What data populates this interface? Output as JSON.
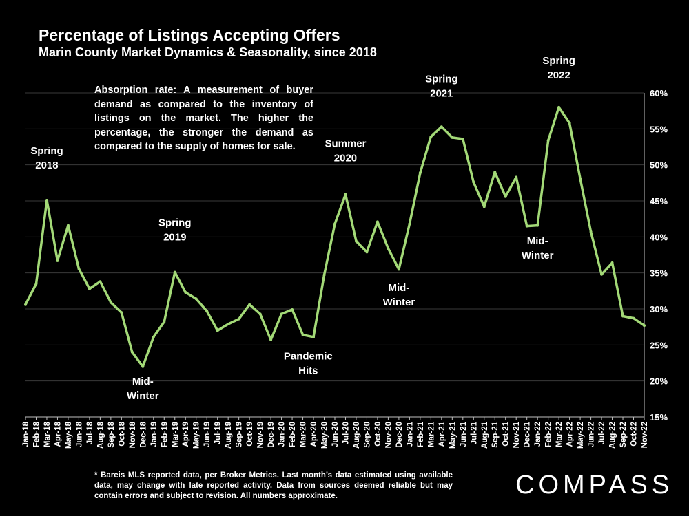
{
  "chart_data": {
    "type": "line",
    "title": "Percentage of Listings Accepting Offers",
    "subtitle": "Marin County Market Dynamics & Seasonality, since 2018",
    "x": [
      "Jan-18",
      "Feb-18",
      "Mar-18",
      "Apr-18",
      "May-18",
      "Jun-18",
      "Jul-18",
      "Aug-18",
      "Sep-18",
      "Oct-18",
      "Nov-18",
      "Dec-18",
      "Jan-19",
      "Feb-19",
      "Mar-19",
      "Apr-19",
      "May-19",
      "Jun-19",
      "Jul-19",
      "Aug-19",
      "Sep-19",
      "Oct-19",
      "Nov-19",
      "Dec-19",
      "Jan-20",
      "Feb-20",
      "Mar-20",
      "Apr-20",
      "May-20",
      "Jun-20",
      "Jul-20",
      "Aug-20",
      "Sep-20",
      "Oct-20",
      "Nov-20",
      "Dec-20",
      "Jan-21",
      "Feb-21",
      "Mar-21",
      "Apr-21",
      "May-21",
      "Jun-21",
      "Jul-21",
      "Aug-21",
      "Sep-21",
      "Oct-21",
      "Nov-21",
      "Dec-21",
      "Jan-22",
      "Feb-22",
      "Mar-22",
      "Apr-22",
      "May-22",
      "Jun-22",
      "Jul-22",
      "Aug-22",
      "Sep-22",
      "Oct-22",
      "Nov-22"
    ],
    "series": [
      {
        "values": [
          30.6,
          33.5,
          45.1,
          36.7,
          41.6,
          35.6,
          32.8,
          33.8,
          30.9,
          29.5,
          24.0,
          22.0,
          26.1,
          28.2,
          35.1,
          32.3,
          31.4,
          29.7,
          27.0,
          27.9,
          28.6,
          30.6,
          29.3,
          25.7,
          29.3,
          29.9,
          26.4,
          26.1,
          34.7,
          41.8,
          45.9,
          39.4,
          37.9,
          42.1,
          38.4,
          35.5,
          41.8,
          48.9,
          53.9,
          55.3,
          53.8,
          53.6,
          47.6,
          44.2,
          49.0,
          45.6,
          48.3,
          41.5,
          41.6,
          53.4,
          58.0,
          55.8,
          48.1,
          40.7,
          34.8,
          36.4,
          29.0,
          28.7,
          27.7
        ],
        "color": "#a3d977"
      }
    ],
    "yaxis": {
      "ylim": [
        15,
        60
      ],
      "ticks": [
        "15%",
        "20%",
        "25%",
        "30%",
        "35%",
        "40%",
        "45%",
        "50%",
        "55%",
        "60%"
      ],
      "position": "right"
    },
    "grid": true,
    "annotations": [
      {
        "lines": [
          "Spring",
          "2018"
        ],
        "x_index": 2,
        "value": 51.5
      },
      {
        "lines": [
          "Mid-",
          "Winter"
        ],
        "x_index": 11,
        "value": 19.5
      },
      {
        "lines": [
          "Spring",
          "2019"
        ],
        "x_index": 14,
        "value": 41.5
      },
      {
        "lines": [
          "Pandemic",
          "Hits"
        ],
        "x_index": 26.5,
        "value": 23.0
      },
      {
        "lines": [
          "Summer",
          "2020"
        ],
        "x_index": 30,
        "value": 52.5
      },
      {
        "lines": [
          "Mid-",
          "Winter"
        ],
        "x_index": 35,
        "value": 32.5
      },
      {
        "lines": [
          "Spring",
          "2021"
        ],
        "x_index": 39,
        "value": 61.5
      },
      {
        "lines": [
          "Mid-",
          "Winter"
        ],
        "x_index": 48,
        "value": 39.0
      },
      {
        "lines": [
          "Spring",
          "2022"
        ],
        "x_index": 50,
        "value": 64.0
      }
    ]
  },
  "textbox": "Absorption rate: A measurement of buyer demand as compared to the inventory of listings on the market. The higher the percentage, the stronger the demand as compared to the supply of homes for sale.",
  "footnote": "* Bareis MLS reported data, per Broker Metrics. Last month’s data estimated using available data, may change with late reported activity. Data from sources deemed reliable but may contain errors and subject to revision. All numbers approximate.",
  "logo": "COMPASS"
}
